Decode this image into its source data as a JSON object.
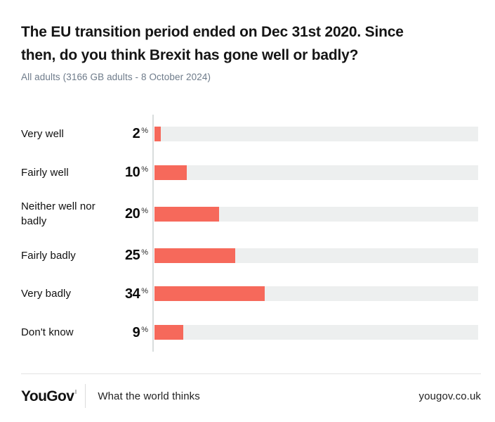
{
  "header": {
    "title_line1": "The EU transition period ended on Dec 31st 2020. Since",
    "title_line2": "then, do you think Brexit has gone well or badly?",
    "subtitle": "All adults (3166 GB adults - 8 October 2024)"
  },
  "chart_data": {
    "type": "bar",
    "orientation": "horizontal",
    "title": "The EU transition period ended on Dec 31st 2020. Since then, do you think Brexit has gone well or badly?",
    "subtitle": "All adults (3166 GB adults - 8 October 2024)",
    "categories": [
      "Very well",
      "Fairly well",
      "Neither well nor badly",
      "Fairly badly",
      "Very badly",
      "Don't know"
    ],
    "values": [
      2,
      10,
      20,
      25,
      34,
      9
    ],
    "unit": "%",
    "xlim": [
      0,
      100
    ],
    "grid": false,
    "legend": false,
    "bar_color": "#f6695b",
    "track_color": "#edefef",
    "axis_line_color": "#d9dddd"
  },
  "footer": {
    "logo": "YouGov",
    "tagline": "What the world thinks",
    "website": "yougov.co.uk"
  }
}
